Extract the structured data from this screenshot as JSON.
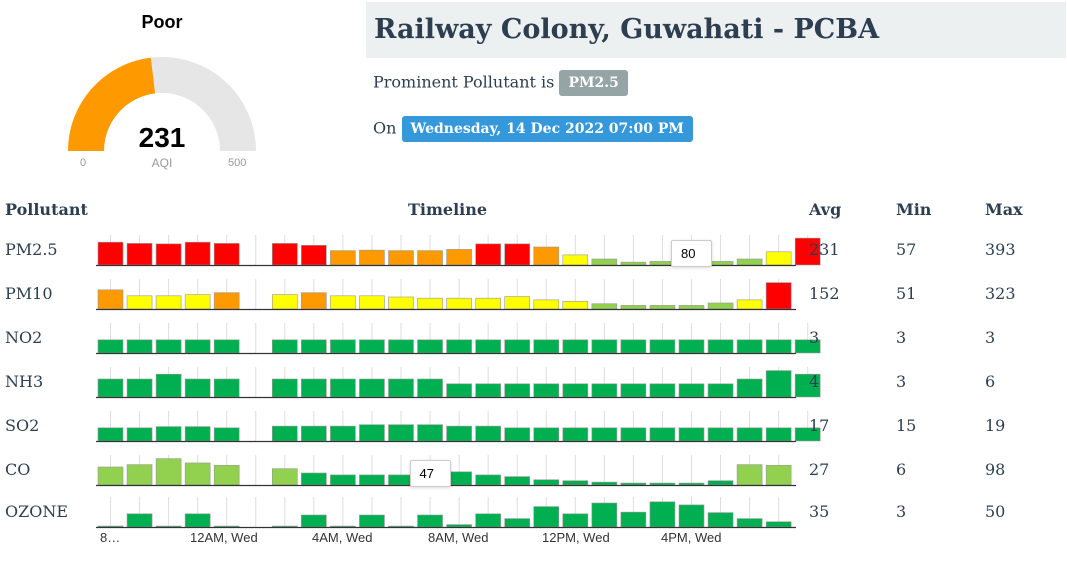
{
  "gauge": {
    "status": "Poor",
    "value": "231",
    "label": "AQI",
    "min_label": "0",
    "max_label": "500",
    "min": 0,
    "max": 500,
    "aqi": 231,
    "fill_color": "#ff9900",
    "track_color": "#e6e6e6"
  },
  "station": {
    "title": "Railway Colony, Guwahati - PCBA",
    "prominent_prefix": "Prominent Pollutant is",
    "prominent_pollutant": "PM2.5",
    "date_prefix": "On",
    "date": "Wednesday, 14 Dec 2022 07:00 PM"
  },
  "table": {
    "headers": {
      "pollutant": "Pollutant",
      "timeline": "Timeline",
      "avg": "Avg",
      "min": "Min",
      "max": "Max"
    },
    "x_labels": [
      "8…",
      "12AM, Wed",
      "4AM, Wed",
      "8AM, Wed",
      "12PM, Wed",
      "4PM, Wed"
    ],
    "colors": {
      "red": "#ff0000",
      "orange": "#ff9900",
      "yellow": "#ffff00",
      "lightgreen": "#92d050",
      "green": "#00b050"
    },
    "rows": [
      {
        "name": "PM2.5",
        "avg": "231",
        "min": "57",
        "max": "393",
        "bars": [
          [
            0.95,
            "red"
          ],
          [
            0.9,
            "red"
          ],
          [
            0.88,
            "red"
          ],
          [
            0.95,
            "red"
          ],
          [
            0.9,
            "red"
          ],
          null,
          [
            0.9,
            "red"
          ],
          [
            0.82,
            "red"
          ],
          [
            0.6,
            "orange"
          ],
          [
            0.62,
            "orange"
          ],
          [
            0.6,
            "orange"
          ],
          [
            0.6,
            "orange"
          ],
          [
            0.65,
            "orange"
          ],
          [
            0.88,
            "red"
          ],
          [
            0.88,
            "red"
          ],
          [
            0.75,
            "orange"
          ],
          [
            0.42,
            "yellow"
          ],
          [
            0.25,
            "lightgreen"
          ],
          [
            0.12,
            "lightgreen"
          ],
          [
            0.15,
            "lightgreen"
          ],
          [
            0.15,
            "lightgreen"
          ],
          [
            0.15,
            "lightgreen"
          ],
          [
            0.25,
            "lightgreen"
          ],
          [
            0.55,
            "yellow"
          ],
          [
            1.12,
            "red"
          ]
        ]
      },
      {
        "name": "PM10",
        "avg": "152",
        "min": "51",
        "max": "323",
        "bars": [
          [
            0.8,
            "orange"
          ],
          [
            0.55,
            "yellow"
          ],
          [
            0.55,
            "yellow"
          ],
          [
            0.6,
            "yellow"
          ],
          [
            0.68,
            "orange"
          ],
          null,
          [
            0.6,
            "yellow"
          ],
          [
            0.68,
            "orange"
          ],
          [
            0.55,
            "yellow"
          ],
          [
            0.55,
            "yellow"
          ],
          [
            0.5,
            "yellow"
          ],
          [
            0.45,
            "yellow"
          ],
          [
            0.45,
            "yellow"
          ],
          [
            0.45,
            "yellow"
          ],
          [
            0.52,
            "yellow"
          ],
          [
            0.38,
            "yellow"
          ],
          [
            0.32,
            "yellow"
          ],
          [
            0.22,
            "lightgreen"
          ],
          [
            0.15,
            "lightgreen"
          ],
          [
            0.15,
            "lightgreen"
          ],
          [
            0.15,
            "lightgreen"
          ],
          [
            0.25,
            "lightgreen"
          ],
          [
            0.38,
            "yellow"
          ],
          [
            1.1,
            "red"
          ]
        ]
      },
      {
        "name": "NO2",
        "avg": "3",
        "min": "3",
        "max": "3",
        "bars": [
          [
            0.55,
            "green"
          ],
          [
            0.55,
            "green"
          ],
          [
            0.55,
            "green"
          ],
          [
            0.55,
            "green"
          ],
          [
            0.55,
            "green"
          ],
          null,
          [
            0.55,
            "green"
          ],
          [
            0.55,
            "green"
          ],
          [
            0.55,
            "green"
          ],
          [
            0.55,
            "green"
          ],
          [
            0.55,
            "green"
          ],
          [
            0.55,
            "green"
          ],
          [
            0.55,
            "green"
          ],
          [
            0.55,
            "green"
          ],
          [
            0.55,
            "green"
          ],
          [
            0.55,
            "green"
          ],
          [
            0.55,
            "green"
          ],
          [
            0.55,
            "green"
          ],
          [
            0.55,
            "green"
          ],
          [
            0.55,
            "green"
          ],
          [
            0.55,
            "green"
          ],
          [
            0.55,
            "green"
          ],
          [
            0.55,
            "green"
          ],
          [
            0.55,
            "green"
          ],
          [
            0.55,
            "green"
          ]
        ]
      },
      {
        "name": "NH3",
        "avg": "4",
        "min": "3",
        "max": "6",
        "bars": [
          [
            0.75,
            "green"
          ],
          [
            0.75,
            "green"
          ],
          [
            0.95,
            "green"
          ],
          [
            0.75,
            "green"
          ],
          [
            0.75,
            "green"
          ],
          null,
          [
            0.75,
            "green"
          ],
          [
            0.75,
            "green"
          ],
          [
            0.75,
            "green"
          ],
          [
            0.75,
            "green"
          ],
          [
            0.75,
            "green"
          ],
          [
            0.75,
            "green"
          ],
          [
            0.55,
            "green"
          ],
          [
            0.55,
            "green"
          ],
          [
            0.55,
            "green"
          ],
          [
            0.55,
            "green"
          ],
          [
            0.55,
            "green"
          ],
          [
            0.55,
            "green"
          ],
          [
            0.55,
            "green"
          ],
          [
            0.55,
            "green"
          ],
          [
            0.55,
            "green"
          ],
          [
            0.55,
            "green"
          ],
          [
            0.75,
            "green"
          ],
          [
            1.1,
            "green"
          ],
          [
            0.95,
            "green"
          ]
        ]
      },
      {
        "name": "SO2",
        "avg": "17",
        "min": "15",
        "max": "19",
        "bars": [
          [
            0.55,
            "green"
          ],
          [
            0.55,
            "green"
          ],
          [
            0.6,
            "green"
          ],
          [
            0.6,
            "green"
          ],
          [
            0.55,
            "green"
          ],
          null,
          [
            0.62,
            "green"
          ],
          [
            0.62,
            "green"
          ],
          [
            0.62,
            "green"
          ],
          [
            0.68,
            "green"
          ],
          [
            0.68,
            "green"
          ],
          [
            0.68,
            "green"
          ],
          [
            0.62,
            "green"
          ],
          [
            0.62,
            "green"
          ],
          [
            0.55,
            "green"
          ],
          [
            0.55,
            "green"
          ],
          [
            0.55,
            "green"
          ],
          [
            0.55,
            "green"
          ],
          [
            0.55,
            "green"
          ],
          [
            0.55,
            "green"
          ],
          [
            0.55,
            "green"
          ],
          [
            0.55,
            "green"
          ],
          [
            0.55,
            "green"
          ],
          [
            0.55,
            "green"
          ],
          [
            0.55,
            "green"
          ]
        ]
      },
      {
        "name": "CO",
        "avg": "27",
        "min": "6",
        "max": "98",
        "bars": [
          [
            0.75,
            "lightgreen"
          ],
          [
            0.85,
            "lightgreen"
          ],
          [
            1.1,
            "lightgreen"
          ],
          [
            0.92,
            "lightgreen"
          ],
          [
            0.82,
            "lightgreen"
          ],
          null,
          [
            0.68,
            "lightgreen"
          ],
          [
            0.5,
            "green"
          ],
          [
            0.42,
            "green"
          ],
          [
            0.42,
            "green"
          ],
          [
            0.42,
            "green"
          ],
          [
            0.55,
            "green"
          ],
          [
            0.55,
            "green"
          ],
          [
            0.42,
            "green"
          ],
          [
            0.35,
            "green"
          ],
          [
            0.22,
            "green"
          ],
          [
            0.18,
            "green"
          ],
          [
            0.12,
            "green"
          ],
          [
            0.08,
            "green"
          ],
          [
            0.08,
            "green"
          ],
          [
            0.08,
            "green"
          ],
          [
            0.18,
            "green"
          ],
          [
            0.85,
            "lightgreen"
          ],
          [
            0.82,
            "lightgreen"
          ]
        ]
      },
      {
        "name": "OZONE",
        "avg": "35",
        "min": "3",
        "max": "50",
        "bars": [
          [
            0.04,
            "green"
          ],
          [
            0.55,
            "green"
          ],
          [
            0.04,
            "green"
          ],
          [
            0.55,
            "green"
          ],
          [
            0.04,
            "green"
          ],
          null,
          [
            0.04,
            "green"
          ],
          [
            0.5,
            "green"
          ],
          [
            0.04,
            "green"
          ],
          [
            0.5,
            "green"
          ],
          [
            0.04,
            "green"
          ],
          [
            0.5,
            "green"
          ],
          [
            0.1,
            "green"
          ],
          [
            0.55,
            "green"
          ],
          [
            0.35,
            "green"
          ],
          [
            0.85,
            "green"
          ],
          [
            0.55,
            "green"
          ],
          [
            1.0,
            "green"
          ],
          [
            0.62,
            "green"
          ],
          [
            1.05,
            "green"
          ],
          [
            0.92,
            "green"
          ],
          [
            0.6,
            "green"
          ],
          [
            0.35,
            "green"
          ],
          [
            0.22,
            "green"
          ]
        ]
      }
    ],
    "tooltips": [
      {
        "row": 0,
        "bar": 20,
        "text": "80"
      },
      {
        "row": 5,
        "bar": 11,
        "text": "47"
      }
    ]
  }
}
